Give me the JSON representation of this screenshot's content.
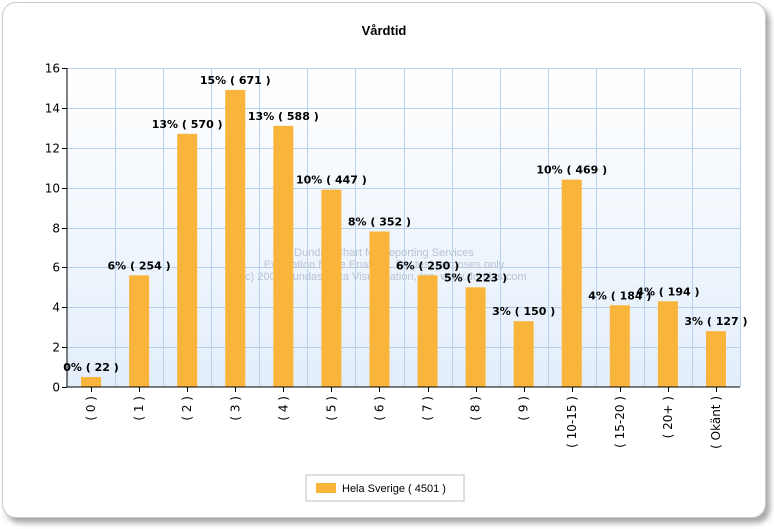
{
  "chart_data": {
    "type": "bar",
    "title": "Vårdtid",
    "xlabel": "",
    "ylabel": "",
    "ylim": [
      0,
      16
    ],
    "yticks": [
      0,
      2,
      4,
      6,
      8,
      10,
      12,
      14,
      16
    ],
    "grid": true,
    "legend_position": "bottom-center",
    "categories": [
      "( 0 )",
      "( 1 )",
      "( 2 )",
      "( 3 )",
      "( 4 )",
      "( 5 )",
      "( 6 )",
      "( 7 )",
      "( 8 )",
      "( 9 )",
      "( 10-15 )",
      "( 15-20 )",
      "( 20+ )",
      "( Okänt )"
    ],
    "series": [
      {
        "name": "Hela Sverige  ( 4501 )",
        "color": "#f9b53b",
        "values": [
          0.5,
          5.6,
          12.7,
          14.9,
          13.1,
          9.9,
          7.8,
          5.6,
          5.0,
          3.3,
          10.4,
          4.1,
          4.3,
          2.8
        ],
        "labels": [
          "0% ( 22 )",
          "6% ( 254 )",
          "13% ( 570 )",
          "15% ( 671 )",
          "13% ( 588 )",
          "10% ( 447 )",
          "8% ( 352 )",
          "6% ( 250 )",
          "5% ( 223 )",
          "3% ( 150 )",
          "10% ( 469 )",
          "4% ( 184 )",
          "4% ( 194 )",
          "3% ( 127 )"
        ]
      }
    ]
  },
  "watermark": {
    "lines": [
      "Dundas Chart for Reporting Services",
      "Evaluation Mode Enabled. For test purposes only",
      "(c) 2007 Dundas Data Visualization, Inc. www.dundas.com"
    ]
  },
  "colors": {
    "bar": "#f9b53b",
    "grid": "#b9d1ea",
    "plot_gradient_top": "#ffffff",
    "plot_gradient_bottom": "#e3eefb"
  }
}
